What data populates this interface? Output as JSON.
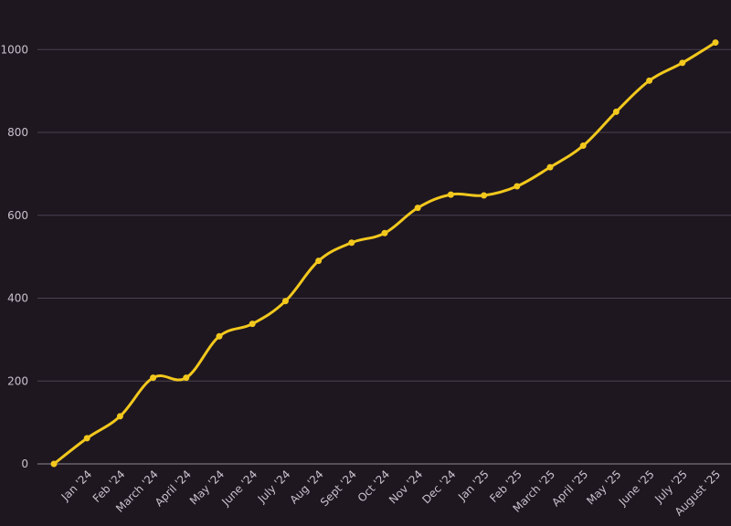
{
  "colors": {
    "background": "#1e1720",
    "grid": "#4a4350",
    "axis": "#8e8894",
    "text": "#c7c2cc",
    "series": "#f2c81d"
  },
  "chart_data": {
    "type": "line",
    "title": "",
    "xlabel": "",
    "ylabel": "",
    "grid": true,
    "legend": "none",
    "ylim": [
      0,
      1080
    ],
    "y_ticks": [
      0,
      200,
      400,
      600,
      800,
      1000
    ],
    "categories": [
      "",
      "Jan '24",
      "Feb '24",
      "March '24",
      "April '24",
      "May '24",
      "June '24",
      "July '24",
      "Aug '24",
      "Sept '24",
      "Oct '24",
      "Nov '24",
      "Dec '24",
      "Jan '25",
      "Feb '25",
      "March '25",
      "April '25",
      "May '25",
      "June '25",
      "July '25",
      "August '25"
    ],
    "series": [
      {
        "values": [
          0,
          62,
          115,
          208,
          208,
          308,
          338,
          393,
          490,
          534,
          557,
          618,
          650,
          648,
          670,
          716,
          768,
          850,
          925,
          968,
          1017
        ]
      }
    ]
  }
}
